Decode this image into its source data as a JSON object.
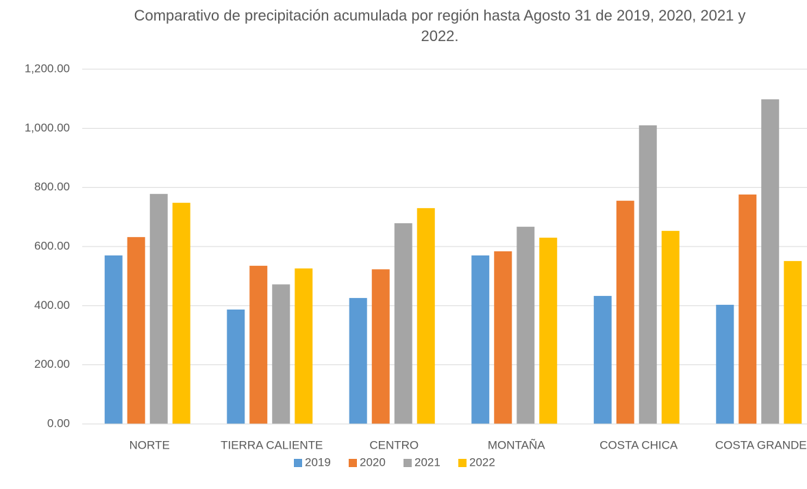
{
  "chart_data": {
    "type": "bar",
    "title": "Comparativo de precipitación acumulada por región hasta Agosto 31 de 2019, 2020, 2021 y 2022.",
    "categories": [
      "NORTE",
      "TIERRA CALIENTE",
      "CENTRO",
      "MONTAÑA",
      "COSTA CHICA",
      "COSTA GRANDE"
    ],
    "series": [
      {
        "name": "2019",
        "color": "#5b9bd5",
        "values": [
          570,
          387,
          426,
          570,
          433,
          403
        ]
      },
      {
        "name": "2020",
        "color": "#ed7d31",
        "values": [
          632,
          535,
          523,
          584,
          755,
          776
        ]
      },
      {
        "name": "2021",
        "color": "#a5a5a5",
        "values": [
          778,
          472,
          679,
          667,
          1010,
          1098
        ]
      },
      {
        "name": "2022",
        "color": "#ffc000",
        "values": [
          748,
          526,
          730,
          630,
          653,
          551
        ]
      }
    ],
    "ylim": [
      0,
      1200
    ],
    "yticks": [
      {
        "value": 0,
        "label": "0.00"
      },
      {
        "value": 200,
        "label": "200.00"
      },
      {
        "value": 400,
        "label": "400.00"
      },
      {
        "value": 600,
        "label": "600.00"
      },
      {
        "value": 800,
        "label": "800.00"
      },
      {
        "value": 1000,
        "label": "1,000.00"
      },
      {
        "value": 1200,
        "label": "1,200.00"
      }
    ],
    "grid": true,
    "legend": "bottom"
  }
}
